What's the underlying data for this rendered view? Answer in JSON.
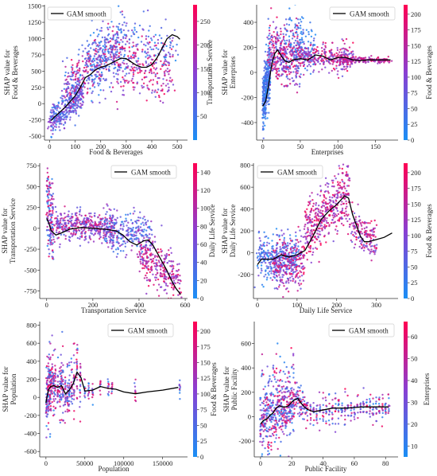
{
  "chart_data": [
    {
      "type": "scatter",
      "xlabel": "Food & Beverages",
      "ylabel": [
        "SHAP value for",
        "Food & Beverages"
      ],
      "colorbar_label": "Transportation Service",
      "legend": "GAM smooth",
      "legend_position": "top-left",
      "xlim": [
        -20,
        540
      ],
      "ylim": [
        -560,
        1520
      ],
      "xticks": [
        0,
        100,
        200,
        300,
        400,
        500
      ],
      "yticks": [
        -500,
        -250,
        0,
        250,
        500,
        750,
        1000,
        1250,
        1500
      ],
      "cbar_range": [
        0,
        285
      ],
      "cbar_ticks": [
        50,
        100,
        150,
        200,
        250
      ],
      "gam_smooth": {
        "x": [
          5,
          20,
          40,
          60,
          80,
          100,
          120,
          140,
          160,
          180,
          200,
          220,
          240,
          260,
          280,
          300,
          320,
          340,
          360,
          380,
          400,
          420,
          440,
          460,
          480,
          500,
          510
        ],
        "y": [
          -260,
          -200,
          -130,
          -60,
          30,
          120,
          250,
          400,
          450,
          520,
          560,
          580,
          620,
          660,
          700,
          690,
          640,
          590,
          560,
          560,
          600,
          700,
          850,
          1000,
          1060,
          1030,
          990
        ]
      },
      "clusters": [
        {
          "x": [
            0,
            130
          ],
          "yc": [
            -300,
            200
          ],
          "sd": 130,
          "n": 350,
          "c": [
            0.05,
            0.6
          ]
        },
        {
          "x": [
            60,
            260
          ],
          "yc": [
            200,
            900
          ],
          "sd": 200,
          "n": 320,
          "c": [
            0.1,
            0.95
          ]
        },
        {
          "x": [
            150,
            300
          ],
          "yc": [
            600,
            900
          ],
          "sd": 260,
          "n": 180,
          "c": [
            0.0,
            0.4
          ]
        },
        {
          "x": [
            250,
            480
          ],
          "yc": [
            650,
            500
          ],
          "sd": 230,
          "n": 280,
          "c": [
            0.3,
            1.0
          ]
        },
        {
          "x": [
            300,
            500
          ],
          "yc": [
            1000,
            800
          ],
          "sd": 180,
          "n": 80,
          "c": [
            0.0,
            0.5
          ]
        }
      ]
    },
    {
      "type": "scatter",
      "xlabel": "Enterprises",
      "ylabel": [
        "SHAP value for",
        "Enterprises"
      ],
      "colorbar_label": "Food & Beverages",
      "legend": "GAM smooth",
      "legend_position": "top-right",
      "xlim": [
        -8,
        180
      ],
      "ylim": [
        -540,
        540
      ],
      "xticks": [
        0,
        50,
        100,
        150
      ],
      "yticks": [
        -400,
        -200,
        0,
        200,
        400
      ],
      "cbar_range": [
        0,
        215
      ],
      "cbar_ticks": [
        0,
        25,
        50,
        75,
        100,
        125,
        150,
        175,
        200
      ],
      "gam_smooth": {
        "x": [
          0,
          4,
          8,
          12,
          16,
          20,
          25,
          30,
          35,
          40,
          50,
          60,
          70,
          80,
          90,
          100,
          110,
          120,
          130,
          140,
          150,
          160,
          170
        ],
        "y": [
          -270,
          -230,
          -100,
          60,
          150,
          180,
          130,
          90,
          80,
          100,
          110,
          100,
          140,
          130,
          100,
          120,
          120,
          100,
          95,
          100,
          100,
          100,
          100
        ]
      },
      "clusters": [
        {
          "x": [
            0,
            10
          ],
          "yc": [
            -250,
            50
          ],
          "sd": 120,
          "n": 350,
          "c": [
            0.0,
            0.3
          ]
        },
        {
          "x": [
            8,
            50
          ],
          "yc": [
            150,
            120
          ],
          "sd": 110,
          "n": 380,
          "c": [
            0.2,
            1.0
          ]
        },
        {
          "x": [
            30,
            70
          ],
          "yc": [
            300,
            200
          ],
          "sd": 100,
          "n": 120,
          "c": [
            0.0,
            0.3
          ]
        },
        {
          "x": [
            50,
            120
          ],
          "yc": [
            120,
            110
          ],
          "sd": 55,
          "n": 300,
          "c": [
            0.3,
            1.0
          ]
        },
        {
          "x": [
            100,
            170
          ],
          "yc": [
            100,
            100
          ],
          "sd": 12,
          "n": 180,
          "c": [
            0.5,
            0.9
          ]
        }
      ]
    },
    {
      "type": "scatter",
      "xlabel": "Transportation Service",
      "ylabel": [
        "SHAP value for",
        "Transportation Service"
      ],
      "colorbar_label": "Daily Life Service",
      "legend": "GAM smooth",
      "legend_position": "top-right",
      "xlim": [
        -30,
        610
      ],
      "ylim": [
        -840,
        780
      ],
      "xticks": [
        0,
        200,
        400,
        600
      ],
      "yticks": [
        -750,
        -500,
        -250,
        0,
        250,
        500,
        750
      ],
      "cbar_range": [
        0,
        150
      ],
      "cbar_ticks": [
        0,
        20,
        40,
        60,
        80,
        100,
        120,
        140
      ],
      "gam_smooth": {
        "x": [
          0,
          10,
          20,
          40,
          60,
          100,
          150,
          200,
          250,
          300,
          330,
          360,
          390,
          420,
          440,
          460,
          480,
          500,
          520,
          540,
          560,
          580
        ],
        "y": [
          120,
          60,
          -30,
          -80,
          -60,
          -10,
          10,
          0,
          -10,
          -30,
          -80,
          -160,
          -200,
          -150,
          -140,
          -200,
          -300,
          -400,
          -500,
          -620,
          -720,
          -790
        ]
      },
      "clusters": [
        {
          "x": [
            0,
            30
          ],
          "yc": [
            300,
            0
          ],
          "sd": 250,
          "n": 150,
          "c": [
            0.0,
            1.0
          ]
        },
        {
          "x": [
            40,
            300
          ],
          "yc": [
            50,
            0
          ],
          "sd": 90,
          "n": 420,
          "c": [
            0.2,
            0.9
          ]
        },
        {
          "x": [
            250,
            450
          ],
          "yc": [
            -20,
            -100
          ],
          "sd": 120,
          "n": 250,
          "c": [
            0.05,
            0.6
          ]
        },
        {
          "x": [
            400,
            580
          ],
          "yc": [
            -300,
            -650
          ],
          "sd": 140,
          "n": 280,
          "c": [
            0.4,
            1.0
          ]
        }
      ]
    },
    {
      "type": "scatter",
      "xlabel": "Daily Life Service",
      "ylabel": [
        "SHAP value for",
        "Daily Life Service"
      ],
      "colorbar_label": "Food & Beverages",
      "legend": "GAM smooth",
      "legend_position": "top-left",
      "xlim": [
        -10,
        355
      ],
      "ylim": [
        -420,
        820
      ],
      "xticks": [
        0,
        100,
        200,
        300
      ],
      "yticks": [
        -200,
        0,
        200,
        400,
        600,
        800
      ],
      "cbar_range": [
        0,
        215
      ],
      "cbar_ticks": [
        0,
        25,
        50,
        75,
        100,
        125,
        150,
        175,
        200
      ],
      "gam_smooth": {
        "x": [
          0,
          10,
          20,
          40,
          60,
          80,
          100,
          120,
          140,
          160,
          180,
          200,
          220,
          230,
          240,
          250,
          260,
          270,
          280,
          300,
          320,
          340
        ],
        "y": [
          -110,
          -60,
          -60,
          -60,
          -20,
          -40,
          -20,
          20,
          150,
          300,
          380,
          440,
          520,
          500,
          350,
          250,
          150,
          100,
          100,
          120,
          140,
          180
        ]
      },
      "clusters": [
        {
          "x": [
            0,
            100
          ],
          "yc": [
            -40,
            -40
          ],
          "sd": 100,
          "n": 320,
          "c": [
            0.0,
            0.5
          ]
        },
        {
          "x": [
            40,
            120
          ],
          "yc": [
            -150,
            -50
          ],
          "sd": 110,
          "n": 250,
          "c": [
            0.3,
            1.0
          ]
        },
        {
          "x": [
            120,
            230
          ],
          "yc": [
            200,
            550
          ],
          "sd": 130,
          "n": 420,
          "c": [
            0.4,
            1.0
          ]
        },
        {
          "x": [
            230,
            300
          ],
          "yc": [
            250,
            120
          ],
          "sd": 90,
          "n": 160,
          "c": [
            0.3,
            1.0
          ]
        }
      ]
    },
    {
      "type": "scatter",
      "xlabel": "Population",
      "ylabel": [
        "SHAP value for",
        "Population"
      ],
      "colorbar_label": "Food & Beverages",
      "legend": "GAM smooth",
      "legend_position": "top-left",
      "xlim": [
        -8000,
        182000
      ],
      "ylim": [
        -660,
        840
      ],
      "xticks": [
        0,
        50000,
        100000,
        150000
      ],
      "yticks": [
        -600,
        -400,
        -200,
        0,
        200,
        400,
        600,
        800
      ],
      "cbar_range": [
        0,
        215
      ],
      "cbar_ticks": [
        0,
        25,
        50,
        75,
        100,
        125,
        150,
        175,
        200
      ],
      "gam_smooth": {
        "x": [
          0,
          3000,
          6000,
          10000,
          15000,
          20000,
          25000,
          30000,
          35000,
          40000,
          45000,
          50000,
          60000,
          70000,
          80000,
          90000,
          100000,
          115000,
          130000,
          150000,
          170000
        ],
        "y": [
          -60,
          80,
          120,
          130,
          110,
          130,
          40,
          80,
          150,
          280,
          220,
          70,
          80,
          120,
          100,
          90,
          60,
          40,
          60,
          80,
          110
        ]
      },
      "columns": [
        500,
        1500,
        2500,
        3500,
        4500,
        5500,
        6500,
        8000,
        10000,
        12000,
        15000,
        18000,
        20000,
        22000,
        25000,
        28000,
        30000,
        33000,
        36000,
        40000,
        44000,
        50000,
        55000,
        60000,
        70000,
        80000,
        85000,
        115000,
        172000
      ]
    },
    {
      "type": "scatter",
      "xlabel": "Public Facility",
      "ylabel": [
        "SHAP value for",
        "Public Facility"
      ],
      "colorbar_label": "Enterprises",
      "legend": "GAM smooth",
      "legend_position": "top-right",
      "xlim": [
        -4,
        88
      ],
      "ylim": [
        -330,
        780
      ],
      "xticks": [
        0,
        20,
        40,
        60,
        80
      ],
      "yticks": [
        -200,
        0,
        200,
        400,
        600
      ],
      "cbar_range": [
        5,
        67
      ],
      "cbar_ticks": [
        10,
        20,
        30,
        40,
        50,
        60
      ],
      "gam_smooth": {
        "x": [
          0,
          2,
          4,
          6,
          8,
          10,
          12,
          14,
          16,
          18,
          20,
          22,
          24,
          26,
          28,
          30,
          34,
          38,
          42,
          46,
          50,
          55,
          60,
          65,
          70,
          75,
          80,
          82
        ],
        "y": [
          -60,
          -30,
          -20,
          10,
          30,
          70,
          90,
          80,
          80,
          90,
          120,
          140,
          150,
          110,
          80,
          60,
          40,
          50,
          60,
          70,
          70,
          70,
          75,
          80,
          80,
          80,
          80,
          80
        ]
      },
      "columns": [
        0,
        1,
        2,
        3,
        4,
        5,
        6,
        7,
        8,
        9,
        10,
        11,
        12,
        13,
        14,
        15,
        16,
        17,
        18,
        19,
        20,
        21,
        22,
        23,
        24,
        25,
        26,
        27,
        28,
        29,
        30,
        32,
        34,
        36,
        38,
        40,
        42,
        44,
        46,
        48,
        50,
        52,
        54,
        56,
        58,
        60,
        62,
        64,
        66,
        68,
        70,
        72,
        74,
        76,
        78,
        80,
        82
      ]
    }
  ]
}
